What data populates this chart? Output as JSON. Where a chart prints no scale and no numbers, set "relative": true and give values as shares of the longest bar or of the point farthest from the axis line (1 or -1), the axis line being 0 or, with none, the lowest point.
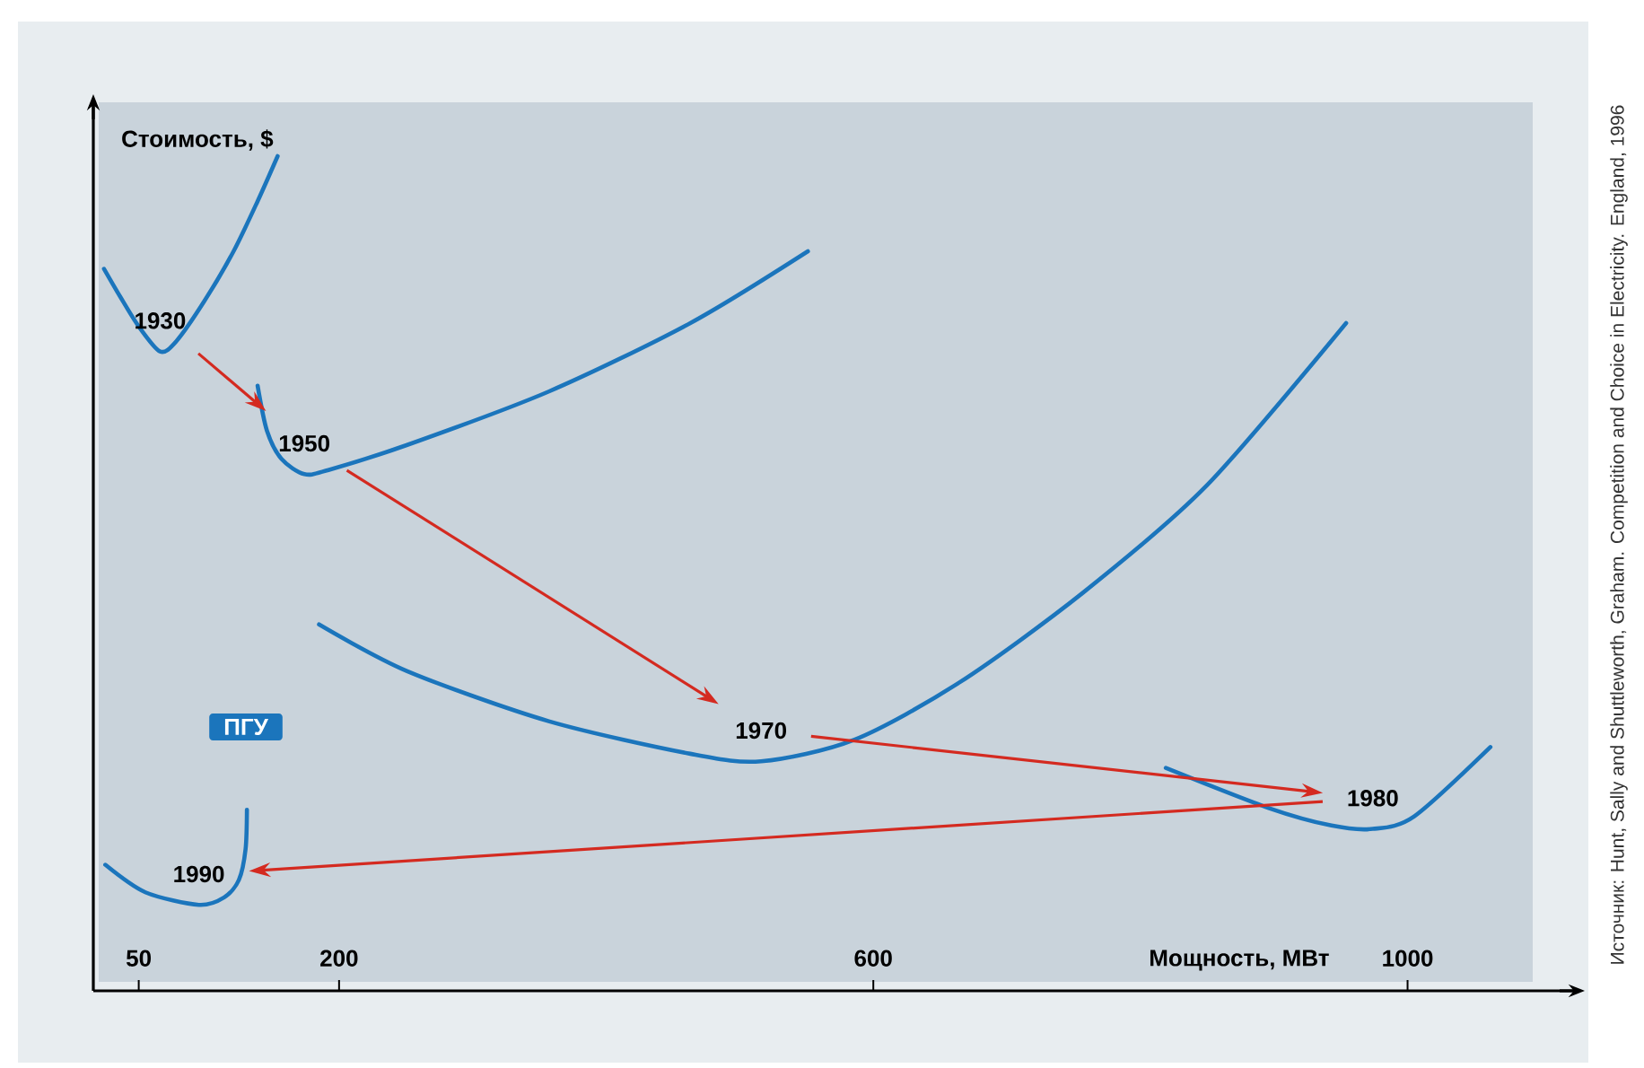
{
  "chart_data": {
    "type": "line",
    "relative": true,
    "tick_labels": "x",
    "xlabel": "Мощность, МВт",
    "ylabel": "Стоимость, $",
    "xlim": [
      16,
      1130
    ],
    "xticks": [
      50,
      200,
      600,
      1000
    ],
    "annotations": [
      "ПГУ",
      "Источник: Hunt, Sally and Shuttleworth, Graham. Competition and Choice in Electricity. England, 1996"
    ],
    "series": [
      {
        "name": "1930",
        "color": "#1b75bc",
        "x": [
          24,
          36,
          50,
          66,
          78,
          99,
          121,
          139,
          154
        ],
        "values": [
          0.865,
          0.832,
          0.796,
          0.766,
          0.778,
          0.826,
          0.886,
          0.946,
          1
        ]
      },
      {
        "name": "1950",
        "color": "#1b75bc",
        "x": [
          139,
          146,
          157,
          174,
          192,
          251,
          357,
          463,
          551
        ],
        "values": [
          0.725,
          0.671,
          0.637,
          0.619,
          0.624,
          0.654,
          0.718,
          0.8,
          0.886
        ]
      },
      {
        "name": "1970",
        "color": "#1b75bc",
        "x": [
          185,
          251,
          357,
          463,
          516,
          586,
          665,
          757,
          850,
          954
        ],
        "values": [
          0.439,
          0.383,
          0.323,
          0.284,
          0.275,
          0.301,
          0.37,
          0.477,
          0.606,
          0.8
        ]
      },
      {
        "name": "1980",
        "color": "#1b75bc",
        "x": [
          819,
          896,
          943,
          974,
          1005,
          1062
        ],
        "values": [
          0.267,
          0.219,
          0.198,
          0.194,
          0.209,
          0.292
        ]
      },
      {
        "name": "1990",
        "color": "#1b75bc",
        "x": [
          25,
          55,
          95,
          114,
          125,
          130,
          131
        ],
        "values": [
          0.151,
          0.118,
          0.103,
          0.112,
          0.133,
          0.17,
          0.217
        ]
      }
    ]
  }
}
